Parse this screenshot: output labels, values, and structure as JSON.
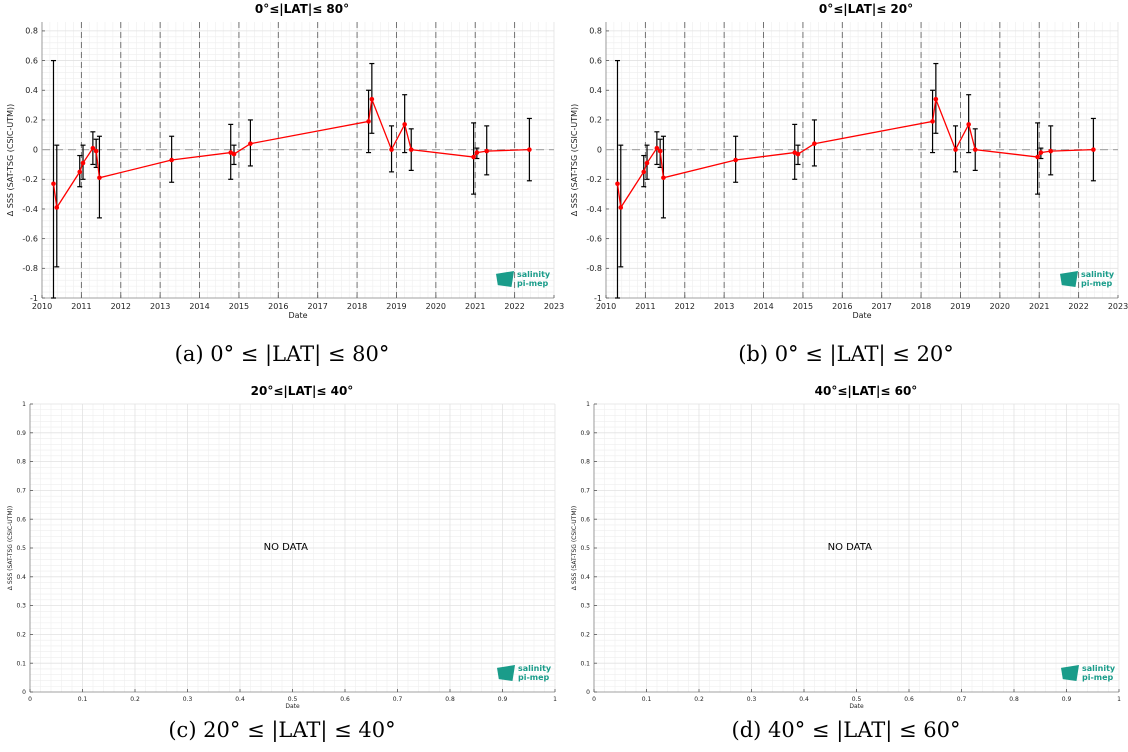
{
  "logo": {
    "line1": "salinity",
    "line2": "pi-mep"
  },
  "chart_data": [
    {
      "type": "line",
      "title": "0°≤|LAT|≤ 80°",
      "caption": "(a) 0° ≤ |LAT| ≤ 80°",
      "xlabel": "Date",
      "ylabel": "Δ SSS (SAT-TSG (CSIC-UTM))",
      "x_ticks": [
        "2010",
        "2011",
        "2012",
        "2013",
        "2014",
        "2015",
        "2016",
        "2017",
        "2018",
        "2019",
        "2020",
        "2021",
        "2022",
        "2023"
      ],
      "y_ticks": [
        "-1",
        "-0.8",
        "-0.6",
        "-0.4",
        "-0.2",
        "0",
        "0.2",
        "0.4",
        "0.6",
        "0.8"
      ],
      "xlim": [
        2010,
        2023
      ],
      "ylim": [
        -1,
        0.86
      ],
      "grid": true,
      "series_color": "#ff0000",
      "series": [
        {
          "x": [
            "2010-04",
            "2010-05",
            "2010-12",
            "2011-01",
            "2011-04",
            "2011-05",
            "2011-06",
            "2013-04",
            "2014-10",
            "2014-11",
            "2015-04",
            "2018-04",
            "2018-05",
            "2018-11",
            "2019-03",
            "2019-05",
            "2020-12",
            "2021-01",
            "2021-04",
            "2022-05"
          ],
          "y": [
            -0.23,
            -0.39,
            -0.15,
            -0.09,
            0.01,
            -0.01,
            -0.19,
            -0.07,
            -0.02,
            -0.03,
            0.04,
            0.19,
            0.34,
            0.0,
            0.17,
            0.0,
            -0.05,
            -0.02,
            -0.01,
            0.0
          ],
          "err_low": [
            -1.0,
            -0.79,
            -0.25,
            -0.2,
            -0.1,
            -0.12,
            -0.46,
            -0.22,
            -0.2,
            -0.1,
            -0.11,
            -0.02,
            0.11,
            -0.15,
            -0.02,
            -0.14,
            -0.3,
            -0.06,
            -0.17,
            -0.21
          ],
          "err_high": [
            0.6,
            0.03,
            -0.04,
            0.03,
            0.12,
            0.07,
            0.09,
            0.09,
            0.17,
            0.03,
            0.2,
            0.4,
            0.58,
            0.16,
            0.37,
            0.14,
            0.18,
            0.01,
            0.16,
            0.21
          ]
        }
      ],
      "vlines": [
        "2011",
        "2012",
        "2013",
        "2014",
        "2015",
        "2016",
        "2017",
        "2018",
        "2019",
        "2020",
        "2021",
        "2022"
      ],
      "no_data": false
    },
    {
      "type": "line",
      "title": "0°≤|LAT|≤ 20°",
      "caption": "(b) 0° ≤ |LAT| ≤ 20°",
      "xlabel": "Date",
      "ylabel": "Δ SSS (SAT-TSG (CSIC-UTM))",
      "x_ticks": [
        "2010",
        "2011",
        "2012",
        "2013",
        "2014",
        "2015",
        "2016",
        "2017",
        "2018",
        "2019",
        "2020",
        "2021",
        "2022",
        "2023"
      ],
      "y_ticks": [
        "-1",
        "-0.8",
        "-0.6",
        "-0.4",
        "-0.2",
        "0",
        "0.2",
        "0.4",
        "0.6",
        "0.8"
      ],
      "xlim": [
        2010,
        2023
      ],
      "ylim": [
        -1,
        0.86
      ],
      "grid": true,
      "series_color": "#ff0000",
      "series": [
        {
          "x": [
            "2010-04",
            "2010-05",
            "2010-12",
            "2011-01",
            "2011-04",
            "2011-05",
            "2011-06",
            "2013-04",
            "2014-10",
            "2014-11",
            "2015-04",
            "2018-04",
            "2018-05",
            "2018-11",
            "2019-03",
            "2019-05",
            "2020-12",
            "2021-01",
            "2021-04",
            "2022-05"
          ],
          "y": [
            -0.23,
            -0.39,
            -0.15,
            -0.09,
            0.01,
            -0.01,
            -0.19,
            -0.07,
            -0.02,
            -0.03,
            0.04,
            0.19,
            0.34,
            0.0,
            0.17,
            0.0,
            -0.05,
            -0.02,
            -0.01,
            0.0
          ],
          "err_low": [
            -1.0,
            -0.79,
            -0.25,
            -0.2,
            -0.1,
            -0.12,
            -0.46,
            -0.22,
            -0.2,
            -0.1,
            -0.11,
            -0.02,
            0.11,
            -0.15,
            -0.02,
            -0.14,
            -0.3,
            -0.06,
            -0.17,
            -0.21
          ],
          "err_high": [
            0.6,
            0.03,
            -0.04,
            0.03,
            0.12,
            0.07,
            0.09,
            0.09,
            0.17,
            0.03,
            0.2,
            0.4,
            0.58,
            0.16,
            0.37,
            0.14,
            0.18,
            0.01,
            0.16,
            0.21
          ]
        }
      ],
      "vlines": [
        "2011",
        "2012",
        "2013",
        "2014",
        "2015",
        "2016",
        "2017",
        "2018",
        "2019",
        "2020",
        "2021",
        "2022"
      ],
      "no_data": false
    },
    {
      "type": "line",
      "title": "20°≤|LAT|≤ 40°",
      "caption": "(c) 20° ≤ |LAT| ≤ 40°",
      "xlabel": "Date",
      "ylabel": "Δ SSS (SAT-TSG (CSIC-UTM))",
      "x_ticks": [
        "0",
        "0.1",
        "0.2",
        "0.3",
        "0.4",
        "0.5",
        "0.6",
        "0.7",
        "0.8",
        "0.9",
        "1"
      ],
      "y_ticks": [
        "0",
        "0.1",
        "0.2",
        "0.3",
        "0.4",
        "0.5",
        "0.6",
        "0.7",
        "0.8",
        "0.9",
        "1"
      ],
      "xlim": [
        0,
        1
      ],
      "ylim": [
        0,
        1
      ],
      "grid": true,
      "series": [],
      "no_data": true,
      "no_data_text": "NO DATA"
    },
    {
      "type": "line",
      "title": "40°≤|LAT|≤ 60°",
      "caption": "(d) 40° ≤ |LAT| ≤ 60°",
      "xlabel": "Date",
      "ylabel": "Δ SSS (SAT-TSG (CSIC-UTM))",
      "x_ticks": [
        "0",
        "0.1",
        "0.2",
        "0.3",
        "0.4",
        "0.5",
        "0.6",
        "0.7",
        "0.8",
        "0.9",
        "1"
      ],
      "y_ticks": [
        "0",
        "0.1",
        "0.2",
        "0.3",
        "0.4",
        "0.5",
        "0.6",
        "0.7",
        "0.8",
        "0.9",
        "1"
      ],
      "xlim": [
        0,
        1
      ],
      "ylim": [
        0,
        1
      ],
      "grid": true,
      "series": [],
      "no_data": true,
      "no_data_text": "NO DATA"
    }
  ]
}
